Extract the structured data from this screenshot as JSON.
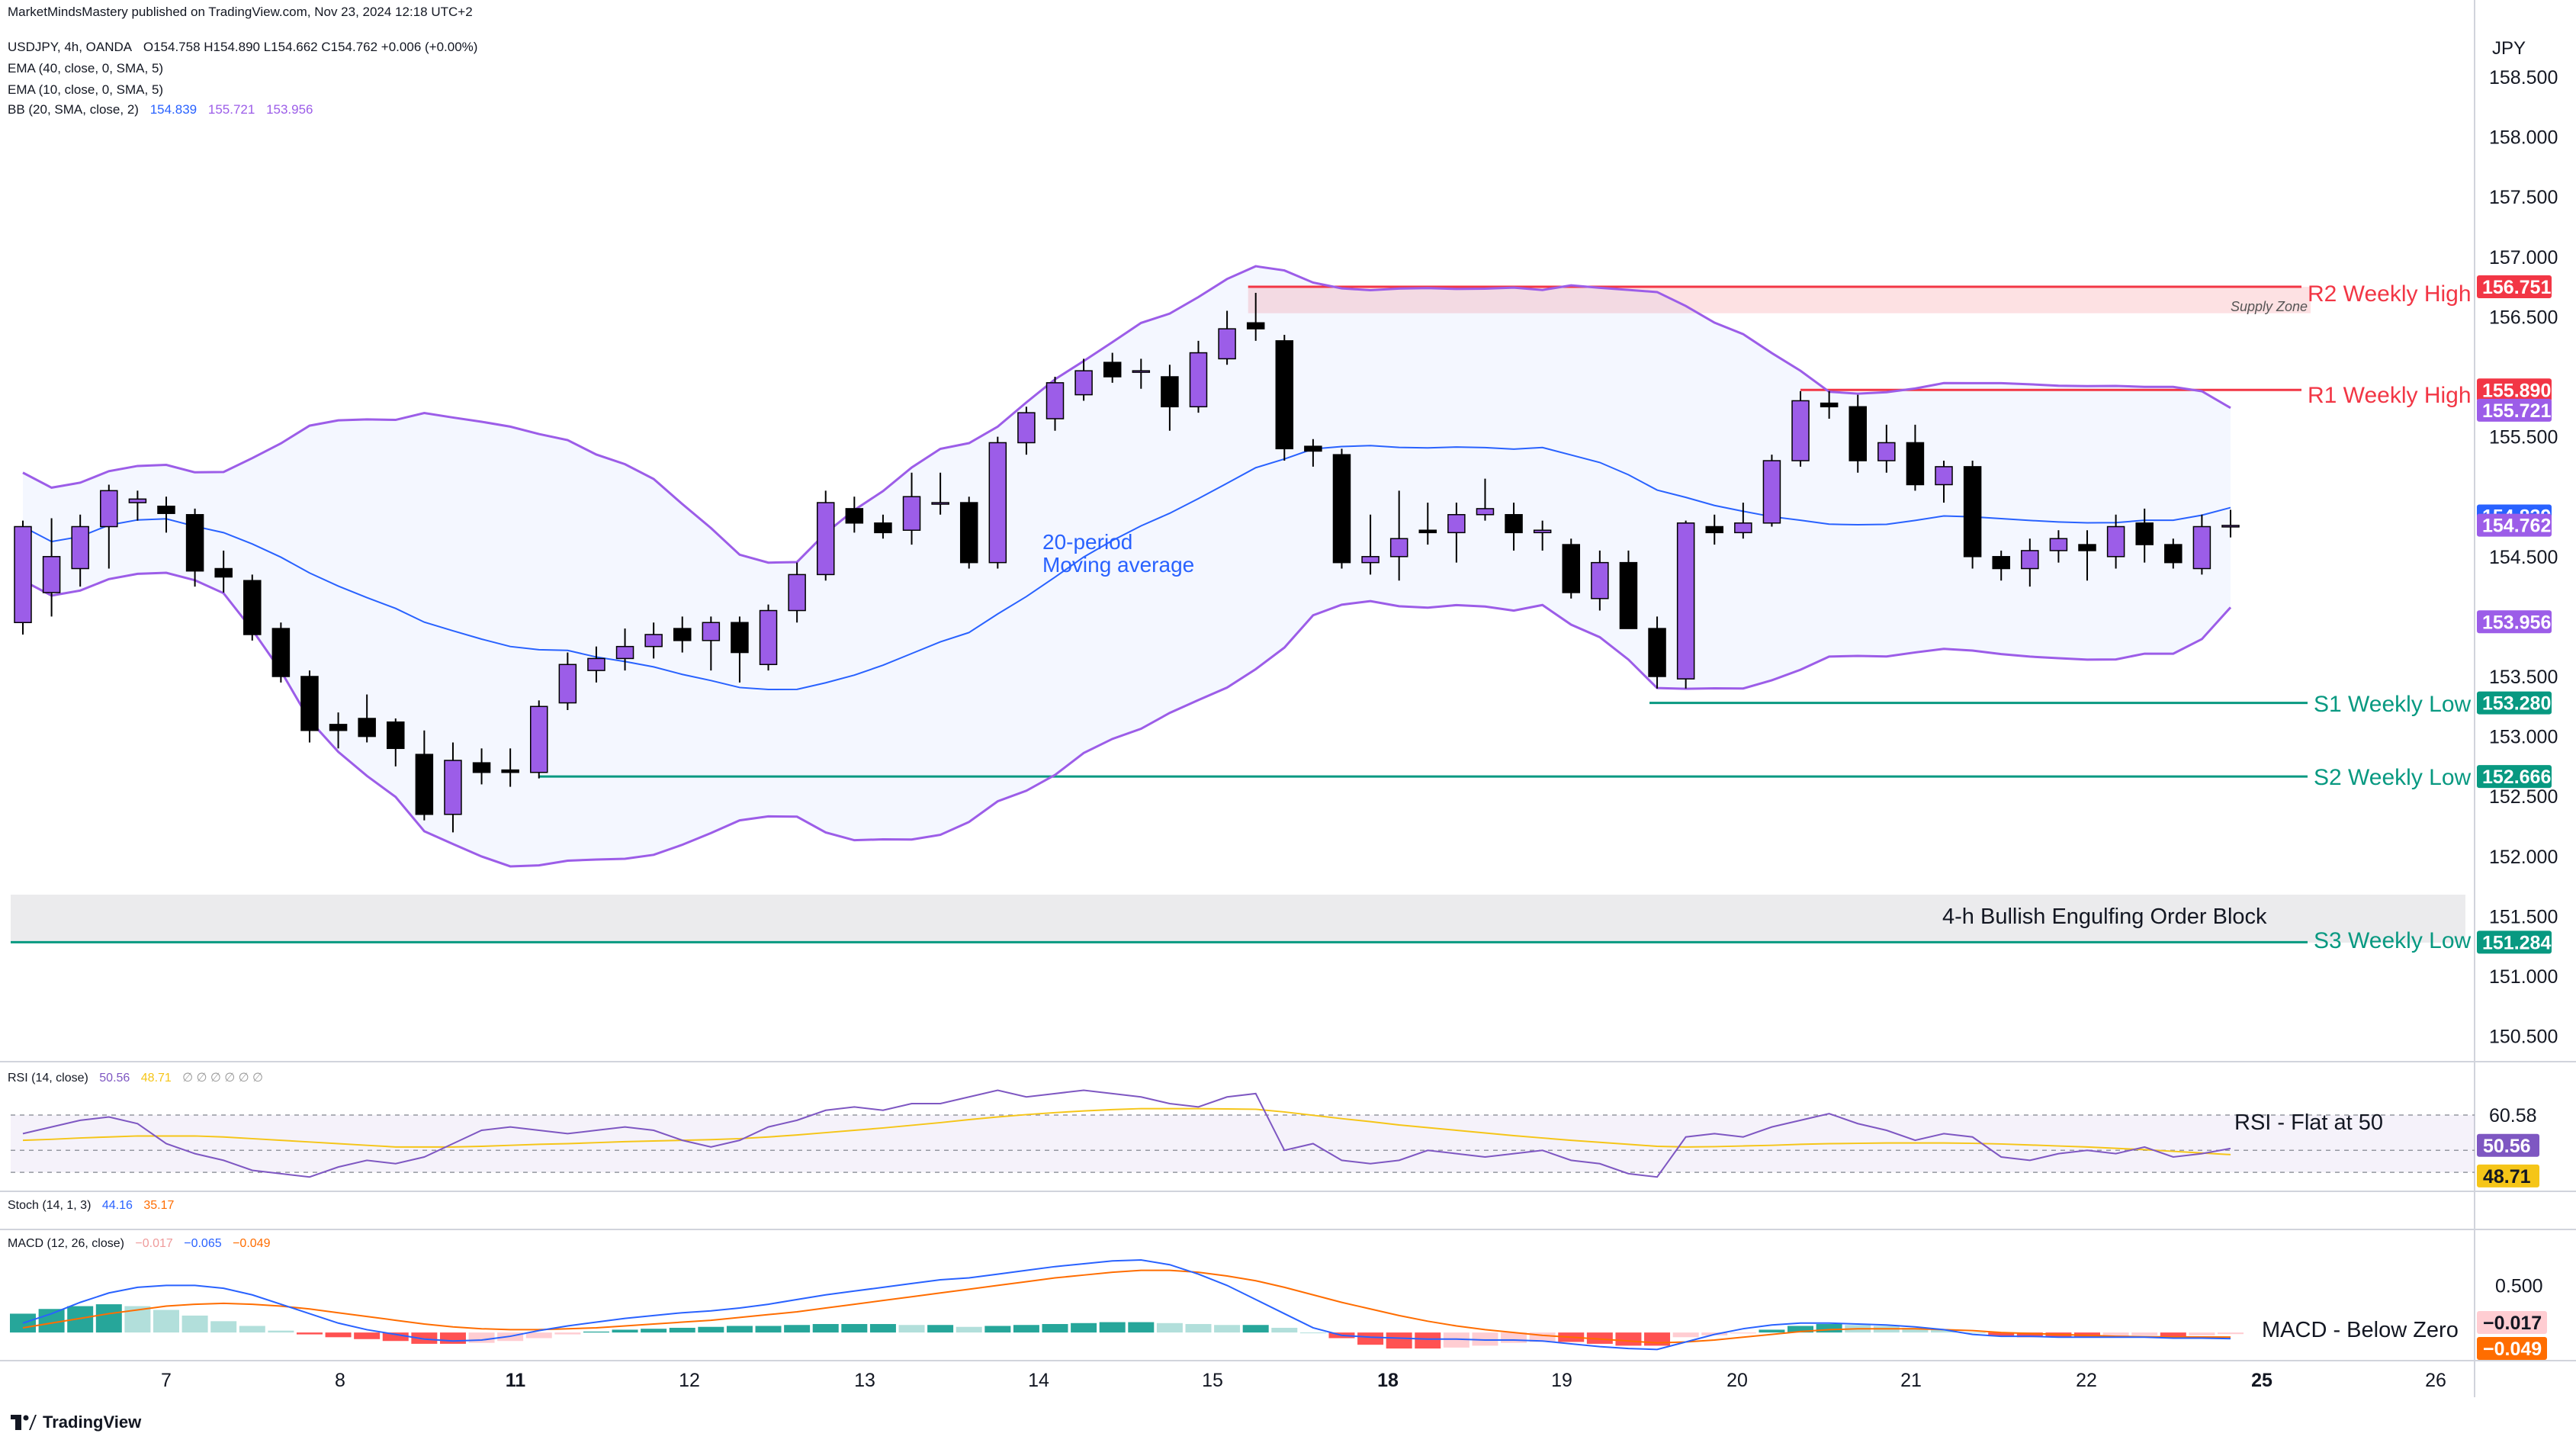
{
  "publisher_line": "MarketMindsMastery published on TradingView.com, Nov 23, 2024 12:18 UTC+2",
  "currency": "JPY",
  "header": {
    "symbol": "USDJPY, 4h, OANDA",
    "ohlc": "O154.758  H154.890  L154.662  C154.762  +0.006 (+0.00%)",
    "ema40": "EMA (40, close, 0, SMA, 5)",
    "ema10": "EMA (10, close, 0, SMA, 5)",
    "bb": "BB (20, SMA, close, 2)",
    "bb_basis": "154.839",
    "bb_upper": "155.721",
    "bb_lower": "153.956"
  },
  "annotations": {
    "supply_zone": "Supply Zone",
    "ma_line1": "20-period",
    "ma_line2": "Moving average",
    "order_block": "4-h Bullish Engulfing Order Block",
    "r2": "R2 Weekly High",
    "r1": "R1 Weekly High",
    "s1": "S1 Weekly Low",
    "s2": "S2 Weekly Low",
    "s3": "S3 Weekly Low",
    "rsi_note": "RSI - Flat at 50",
    "macd_note": "MACD - Below Zero"
  },
  "rsi_header": {
    "label": "RSI (14, close)",
    "v1": "50.56",
    "v2": "48.71",
    "rest": "∅ ∅ ∅ ∅ ∅ ∅"
  },
  "stoch_header": {
    "label": "Stoch (14, 1, 3)",
    "k": "44.16",
    "d": "35.17"
  },
  "macd_header": {
    "label": "MACD (12, 26, close)",
    "hist": "−0.017",
    "macd": "−0.065",
    "signal": "−0.049"
  },
  "tv_logo": "TradingView",
  "chart_data": [
    {
      "type": "candlestick",
      "title": "USDJPY, 4h, OANDA",
      "y_ticks": [
        158.5,
        158.0,
        157.5,
        157.0,
        156.5,
        155.5,
        154.5,
        153.5,
        153.0,
        152.5,
        152.0,
        151.5,
        151.0,
        150.5
      ],
      "ylim": [
        150.3,
        158.85
      ],
      "x_ticks": [
        "7",
        "8",
        "11",
        "12",
        "13",
        "14",
        "15",
        "18",
        "19",
        "20",
        "21",
        "22",
        "25",
        "26"
      ],
      "bold_x_ticks": [
        "11",
        "18",
        "25"
      ],
      "levels": [
        {
          "name": "R2 Weekly High",
          "value": 156.751,
          "label": "156.751",
          "color": "#f23645"
        },
        {
          "name": "R1 Weekly High",
          "value": 155.89,
          "label": "155.890",
          "color": "#f23645"
        },
        {
          "name": "S1 Weekly Low",
          "value": 153.28,
          "label": "153.280",
          "color": "#089981"
        },
        {
          "name": "S2 Weekly Low",
          "value": 152.666,
          "label": "152.666",
          "color": "#089981"
        },
        {
          "name": "S3 Weekly Low",
          "value": 151.284,
          "label": "151.284",
          "color": "#089981"
        }
      ],
      "price_labels": [
        {
          "value": 155.721,
          "label": "155.721",
          "color": "#9c5de8"
        },
        {
          "value": 154.839,
          "label": "154.839",
          "color": "#2962ff"
        },
        {
          "value": 154.762,
          "label": "154.762",
          "color": "#9c5de8"
        },
        {
          "value": 153.956,
          "label": "153.956",
          "color": "#9c5de8"
        }
      ],
      "supply_zone": [
        156.53,
        156.75
      ],
      "order_block": [
        151.28,
        151.68
      ],
      "candles": [
        [
          153.95,
          154.75,
          153.85,
          154.8
        ],
        [
          154.2,
          154.5,
          154.0,
          154.82
        ],
        [
          154.4,
          154.75,
          154.25,
          154.85
        ],
        [
          154.75,
          155.05,
          154.4,
          155.1
        ],
        [
          154.95,
          154.98,
          154.8,
          155.05
        ],
        [
          154.92,
          154.86,
          154.7,
          155.0
        ],
        [
          154.85,
          154.38,
          154.25,
          154.9
        ],
        [
          154.4,
          154.33,
          154.2,
          154.55
        ],
        [
          154.3,
          153.85,
          153.8,
          154.35
        ],
        [
          153.9,
          153.5,
          153.45,
          153.95
        ],
        [
          153.5,
          153.05,
          152.95,
          153.55
        ],
        [
          153.1,
          153.05,
          152.9,
          153.2
        ],
        [
          153.15,
          153.0,
          152.95,
          153.35
        ],
        [
          153.12,
          152.9,
          152.75,
          153.15
        ],
        [
          152.85,
          152.35,
          152.3,
          153.05
        ],
        [
          152.35,
          152.8,
          152.2,
          152.95
        ],
        [
          152.78,
          152.7,
          152.6,
          152.9
        ],
        [
          152.72,
          152.7,
          152.58,
          152.9
        ],
        [
          152.7,
          153.25,
          152.65,
          153.3
        ],
        [
          153.28,
          153.6,
          153.22,
          153.7
        ],
        [
          153.55,
          153.65,
          153.45,
          153.75
        ],
        [
          153.65,
          153.75,
          153.55,
          153.9
        ],
        [
          153.75,
          153.85,
          153.65,
          153.95
        ],
        [
          153.9,
          153.8,
          153.7,
          154.0
        ],
        [
          153.8,
          153.95,
          153.55,
          154.0
        ],
        [
          153.95,
          153.7,
          153.45,
          154.0
        ],
        [
          153.6,
          154.05,
          153.55,
          154.1
        ],
        [
          154.05,
          154.35,
          153.95,
          154.45
        ],
        [
          154.35,
          154.95,
          154.3,
          155.05
        ],
        [
          154.9,
          154.78,
          154.7,
          155.0
        ],
        [
          154.78,
          154.7,
          154.65,
          154.85
        ],
        [
          154.72,
          155.0,
          154.6,
          155.2
        ],
        [
          154.95,
          154.95,
          154.85,
          155.2
        ],
        [
          154.95,
          154.45,
          154.4,
          155.0
        ],
        [
          154.45,
          155.45,
          154.4,
          155.5
        ],
        [
          155.45,
          155.7,
          155.35,
          155.75
        ],
        [
          155.65,
          155.95,
          155.55,
          156.0
        ],
        [
          155.85,
          156.05,
          155.8,
          156.15
        ],
        [
          156.12,
          156.0,
          155.95,
          156.2
        ],
        [
          156.05,
          156.05,
          155.9,
          156.15
        ],
        [
          156.0,
          155.75,
          155.55,
          156.1
        ],
        [
          155.75,
          156.2,
          155.7,
          156.3
        ],
        [
          156.15,
          156.4,
          156.1,
          156.55
        ],
        [
          156.45,
          156.4,
          156.3,
          156.7
        ],
        [
          156.3,
          155.4,
          155.3,
          156.35
        ],
        [
          155.42,
          155.38,
          155.25,
          155.48
        ],
        [
          155.35,
          154.45,
          154.4,
          155.4
        ],
        [
          154.45,
          154.5,
          154.35,
          154.85
        ],
        [
          154.5,
          154.65,
          154.3,
          155.05
        ],
        [
          154.72,
          154.7,
          154.6,
          154.95
        ],
        [
          154.7,
          154.85,
          154.45,
          154.95
        ],
        [
          154.85,
          154.9,
          154.8,
          155.15
        ],
        [
          154.85,
          154.7,
          154.55,
          154.95
        ],
        [
          154.7,
          154.72,
          154.55,
          154.8
        ],
        [
          154.6,
          154.2,
          154.15,
          154.65
        ],
        [
          154.15,
          154.45,
          154.05,
          154.55
        ],
        [
          154.45,
          153.9,
          153.9,
          154.55
        ],
        [
          153.9,
          153.5,
          153.4,
          154.0
        ],
        [
          153.48,
          154.78,
          153.4,
          154.8
        ],
        [
          154.75,
          154.7,
          154.6,
          154.85
        ],
        [
          154.7,
          154.78,
          154.65,
          154.95
        ],
        [
          154.78,
          155.3,
          154.75,
          155.35
        ],
        [
          155.3,
          155.8,
          155.25,
          155.88
        ],
        [
          155.78,
          155.75,
          155.65,
          155.88
        ],
        [
          155.75,
          155.3,
          155.2,
          155.85
        ],
        [
          155.3,
          155.45,
          155.2,
          155.6
        ],
        [
          155.45,
          155.1,
          155.05,
          155.6
        ],
        [
          155.1,
          155.25,
          154.95,
          155.3
        ],
        [
          155.25,
          154.5,
          154.4,
          155.3
        ],
        [
          154.5,
          154.4,
          154.3,
          154.55
        ],
        [
          154.4,
          154.55,
          154.25,
          154.65
        ],
        [
          154.55,
          154.65,
          154.45,
          154.72
        ],
        [
          154.6,
          154.55,
          154.3,
          154.72
        ],
        [
          154.5,
          154.75,
          154.4,
          154.85
        ],
        [
          154.78,
          154.6,
          154.45,
          154.9
        ],
        [
          154.6,
          154.45,
          154.4,
          154.65
        ],
        [
          154.4,
          154.75,
          154.35,
          154.85
        ],
        [
          154.75,
          154.76,
          154.66,
          154.89
        ]
      ]
    },
    {
      "type": "line",
      "title": "RSI (14, close)",
      "y_ticks": [
        60.58,
        43.4
      ],
      "ylim": [
        40.0,
        72.0
      ],
      "band": [
        43.4,
        60.58
      ],
      "value_labels": [
        {
          "label": "50.56",
          "value": 50.56,
          "color": "#7e57c2"
        },
        {
          "label": "48.71",
          "value": 48.71,
          "color": "#f5c518"
        }
      ],
      "series": [
        {
          "name": "RSI",
          "values": [
            55,
            57,
            59,
            60,
            58,
            52,
            49,
            47,
            44,
            43,
            42,
            45,
            47,
            46,
            48,
            52,
            56,
            57,
            56,
            55,
            56,
            57,
            56,
            53,
            51,
            53,
            57,
            59,
            62,
            63,
            62,
            64,
            64,
            66,
            68,
            66,
            67,
            68,
            67,
            66,
            64,
            63,
            66,
            67,
            50,
            52,
            47,
            46,
            47,
            50,
            49,
            48,
            49,
            50,
            47,
            46,
            43,
            42,
            54,
            55,
            54,
            57,
            59,
            61,
            58,
            56,
            53,
            55,
            54,
            48,
            47,
            49,
            50,
            49,
            51,
            48,
            49,
            50.56
          ]
        },
        {
          "name": "MA",
          "values": [
            53,
            53.3,
            53.7,
            54,
            54.3,
            54.3,
            54.3,
            54,
            53.5,
            53,
            52.5,
            52,
            51.5,
            51,
            51,
            51,
            51.2,
            51.5,
            51.8,
            52,
            52.3,
            52.6,
            52.8,
            53,
            53.2,
            53.5,
            54,
            54.6,
            55.3,
            56,
            56.7,
            57.5,
            58.3,
            59.2,
            60,
            60.7,
            61.3,
            61.8,
            62.2,
            62.5,
            62.5,
            62.5,
            62.4,
            62.3,
            61.5,
            60.5,
            59.5,
            58.6,
            57.6,
            56.8,
            56,
            55.2,
            54.4,
            53.7,
            53,
            52.4,
            51.8,
            51.2,
            51,
            51.1,
            51.3,
            51.5,
            51.8,
            52,
            52.1,
            52.2,
            52.2,
            52.2,
            52.1,
            51.9,
            51.6,
            51.3,
            51,
            50.6,
            50.2,
            49.7,
            49.2,
            48.71
          ]
        }
      ]
    },
    {
      "type": "bar",
      "title": "MACD (12, 26, close)",
      "y_ticks": [
        0.5
      ],
      "ylim": [
        -0.25,
        0.9
      ],
      "value_labels": [
        {
          "label": "−0.017",
          "value": -0.017,
          "color": "#ffcdd2"
        },
        {
          "label": "−0.049",
          "value": -0.049,
          "color": "#ff6d00"
        }
      ],
      "histogram": [
        0.2,
        0.25,
        0.28,
        0.3,
        0.28,
        0.24,
        0.18,
        0.12,
        0.07,
        0.02,
        -0.02,
        -0.05,
        -0.07,
        -0.09,
        -0.12,
        -0.12,
        -0.11,
        -0.09,
        -0.06,
        -0.02,
        0.01,
        0.03,
        0.04,
        0.05,
        0.06,
        0.07,
        0.07,
        0.08,
        0.09,
        0.09,
        0.09,
        0.08,
        0.08,
        0.06,
        0.07,
        0.08,
        0.09,
        0.1,
        0.11,
        0.11,
        0.1,
        0.09,
        0.08,
        0.08,
        0.05,
        0.0,
        -0.06,
        -0.13,
        -0.17,
        -0.17,
        -0.16,
        -0.14,
        -0.11,
        -0.1,
        -0.1,
        -0.12,
        -0.14,
        -0.14,
        -0.05,
        -0.03,
        -0.01,
        0.03,
        0.07,
        0.09,
        0.08,
        0.07,
        0.05,
        0.03,
        0.0,
        -0.04,
        -0.05,
        -0.05,
        -0.05,
        -0.04,
        -0.03,
        -0.04,
        -0.03,
        -0.017
      ],
      "series": [
        {
          "name": "MACD",
          "values": [
            0.1,
            0.2,
            0.32,
            0.42,
            0.48,
            0.5,
            0.5,
            0.47,
            0.4,
            0.3,
            0.2,
            0.1,
            0.03,
            -0.02,
            -0.07,
            -0.09,
            -0.08,
            -0.04,
            0.02,
            0.07,
            0.11,
            0.15,
            0.18,
            0.21,
            0.23,
            0.26,
            0.3,
            0.35,
            0.4,
            0.44,
            0.48,
            0.52,
            0.56,
            0.58,
            0.62,
            0.66,
            0.7,
            0.73,
            0.76,
            0.77,
            0.72,
            0.62,
            0.5,
            0.35,
            0.2,
            0.05,
            -0.03,
            -0.05,
            -0.06,
            -0.07,
            -0.07,
            -0.08,
            -0.08,
            -0.09,
            -0.12,
            -0.15,
            -0.17,
            -0.18,
            -0.1,
            -0.02,
            0.04,
            0.08,
            0.1,
            0.1,
            0.09,
            0.08,
            0.06,
            0.03,
            -0.02,
            -0.04,
            -0.04,
            -0.05,
            -0.05,
            -0.05,
            -0.05,
            -0.06,
            -0.06,
            -0.065
          ]
        },
        {
          "name": "Signal",
          "values": [
            0.05,
            0.1,
            0.15,
            0.2,
            0.24,
            0.28,
            0.3,
            0.31,
            0.3,
            0.28,
            0.25,
            0.21,
            0.17,
            0.13,
            0.09,
            0.06,
            0.04,
            0.03,
            0.03,
            0.04,
            0.05,
            0.07,
            0.09,
            0.11,
            0.13,
            0.16,
            0.19,
            0.22,
            0.26,
            0.3,
            0.34,
            0.38,
            0.42,
            0.46,
            0.5,
            0.54,
            0.58,
            0.61,
            0.64,
            0.66,
            0.66,
            0.64,
            0.6,
            0.55,
            0.48,
            0.4,
            0.32,
            0.25,
            0.18,
            0.12,
            0.07,
            0.03,
            0.0,
            -0.03,
            -0.05,
            -0.07,
            -0.09,
            -0.11,
            -0.1,
            -0.08,
            -0.05,
            -0.02,
            0.01,
            0.03,
            0.04,
            0.04,
            0.04,
            0.03,
            0.02,
            0.0,
            -0.01,
            -0.02,
            -0.03,
            -0.04,
            -0.045,
            -0.047,
            -0.048,
            -0.049
          ]
        }
      ]
    }
  ]
}
